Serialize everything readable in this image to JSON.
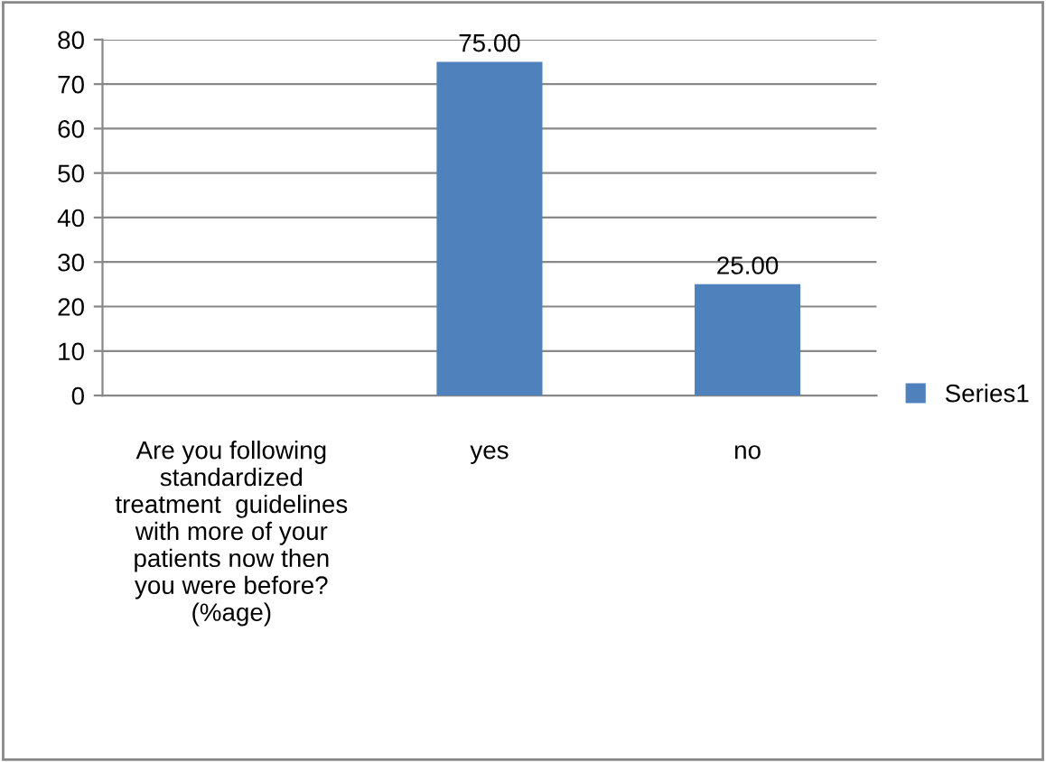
{
  "chart_data": {
    "type": "bar",
    "categories": [
      "Are you following\nstandardized\ntreatment  guidelines\nwith more of your\npatients now then\nyou were before?\n(%age)",
      "yes",
      "no"
    ],
    "series": [
      {
        "name": "Series1",
        "color": "#4f81bd",
        "values": [
          null,
          75,
          25
        ],
        "value_labels": [
          null,
          "75.00",
          "25.00"
        ]
      }
    ],
    "ylim": [
      0,
      80
    ],
    "yticks": [
      0,
      10,
      20,
      30,
      40,
      50,
      60,
      70,
      80
    ],
    "grid": "y",
    "legend": "right"
  }
}
